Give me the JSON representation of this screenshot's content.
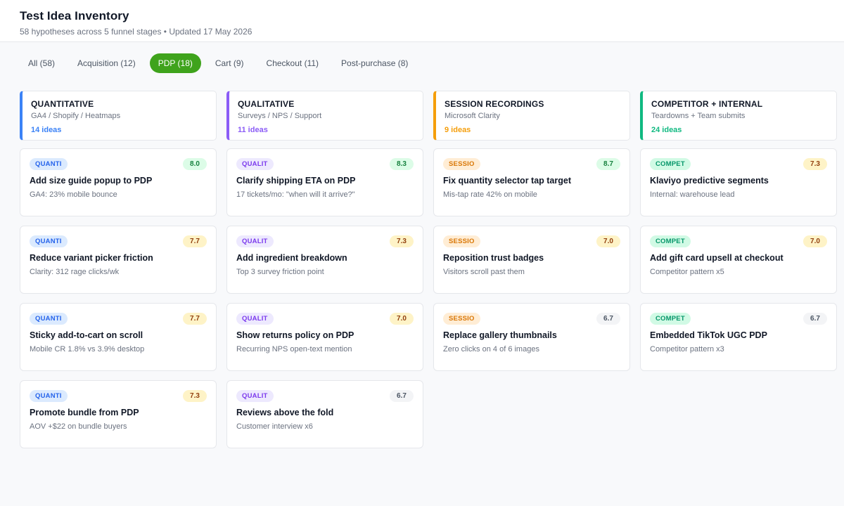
{
  "header": {
    "title": "Test Idea Inventory",
    "subtitle": "58 hypotheses across 5 funnel stages • Updated 17 May 2026"
  },
  "tabs": [
    {
      "label": "All (58)",
      "active": false
    },
    {
      "label": "Acquisition (12)",
      "active": false
    },
    {
      "label": "PDP (18)",
      "active": true
    },
    {
      "label": "Cart (9)",
      "active": false
    },
    {
      "label": "Checkout (11)",
      "active": false
    },
    {
      "label": "Post-purchase (8)",
      "active": false
    }
  ],
  "colors": {
    "active_tab": "#3fa31c",
    "quantitative": "#3b82f6",
    "qualitative": "#8b5cf6",
    "session": "#f59e0b",
    "competitor": "#10b981"
  },
  "columns": [
    {
      "key": "quant",
      "title": "QUANTITATIVE",
      "sources": "GA4 / Shopify / Heatmaps",
      "count": "14 ideas",
      "accent": "#3b82f6",
      "tag_bg": "#dbeafe",
      "tag_fg": "#2563eb",
      "cards": [
        {
          "tag": "QUANTI",
          "score": "8.0",
          "level": "high",
          "title": "Add size guide popup to PDP",
          "evidence": "GA4: 23% mobile bounce"
        },
        {
          "tag": "QUANTI",
          "score": "7.7",
          "level": "mid",
          "title": "Reduce variant picker friction",
          "evidence": "Clarity: 312 rage clicks/wk"
        },
        {
          "tag": "QUANTI",
          "score": "7.7",
          "level": "mid",
          "title": "Sticky add-to-cart on scroll",
          "evidence": "Mobile CR 1.8% vs 3.9% desktop"
        },
        {
          "tag": "QUANTI",
          "score": "7.3",
          "level": "mid",
          "title": "Promote bundle from PDP",
          "evidence": "AOV +$22 on bundle buyers"
        }
      ]
    },
    {
      "key": "qual",
      "title": "QUALITATIVE",
      "sources": "Surveys / NPS / Support",
      "count": "11 ideas",
      "accent": "#8b5cf6",
      "tag_bg": "#ede9fe",
      "tag_fg": "#7c3aed",
      "cards": [
        {
          "tag": "QUALIT",
          "score": "8.3",
          "level": "high",
          "title": "Clarify shipping ETA on PDP",
          "evidence": "17 tickets/mo: \"when will it arrive?\""
        },
        {
          "tag": "QUALIT",
          "score": "7.3",
          "level": "mid",
          "title": "Add ingredient breakdown",
          "evidence": "Top 3 survey friction point"
        },
        {
          "tag": "QUALIT",
          "score": "7.0",
          "level": "mid",
          "title": "Show returns policy on PDP",
          "evidence": "Recurring NPS open-text mention"
        },
        {
          "tag": "QUALIT",
          "score": "6.7",
          "level": "low",
          "title": "Reviews above the fold",
          "evidence": "Customer interview x6"
        }
      ]
    },
    {
      "key": "session",
      "title": "SESSION RECORDINGS",
      "sources": "Microsoft Clarity",
      "count": "9 ideas",
      "accent": "#f59e0b",
      "tag_bg": "#ffedd5",
      "tag_fg": "#d97706",
      "cards": [
        {
          "tag": "SESSIO",
          "score": "8.7",
          "level": "high",
          "title": "Fix quantity selector tap target",
          "evidence": "Mis-tap rate 42% on mobile"
        },
        {
          "tag": "SESSIO",
          "score": "7.0",
          "level": "mid",
          "title": "Reposition trust badges",
          "evidence": "Visitors scroll past them"
        },
        {
          "tag": "SESSIO",
          "score": "6.7",
          "level": "low",
          "title": "Replace gallery thumbnails",
          "evidence": "Zero clicks on 4 of 6 images"
        }
      ]
    },
    {
      "key": "comp",
      "title": "COMPETITOR + INTERNAL",
      "sources": "Teardowns + Team submits",
      "count": "24 ideas",
      "accent": "#10b981",
      "tag_bg": "#d1fae5",
      "tag_fg": "#059669",
      "cards": [
        {
          "tag": "COMPET",
          "score": "7.3",
          "level": "mid",
          "title": "Klaviyo predictive segments",
          "evidence": "Internal: warehouse lead"
        },
        {
          "tag": "COMPET",
          "score": "7.0",
          "level": "mid",
          "title": "Add gift card upsell at checkout",
          "evidence": "Competitor pattern x5"
        },
        {
          "tag": "COMPET",
          "score": "6.7",
          "level": "low",
          "title": "Embedded TikTok UGC PDP",
          "evidence": "Competitor pattern x3"
        }
      ]
    }
  ]
}
